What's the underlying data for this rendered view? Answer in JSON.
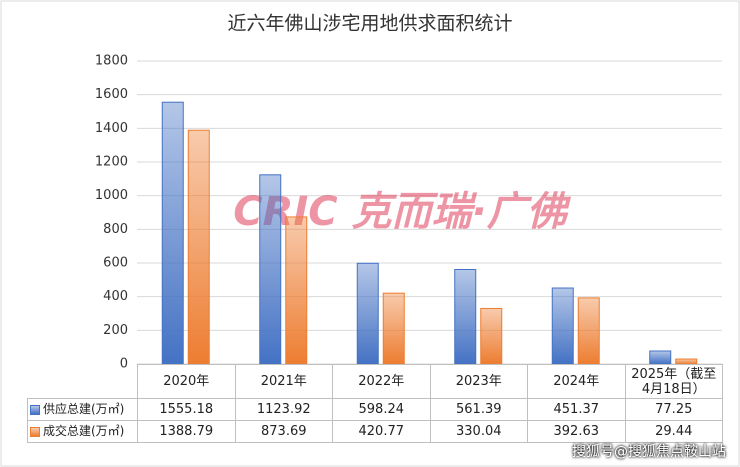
{
  "chart_data": {
    "type": "bar",
    "title": "近六年佛山涉宅用地供求面积统计",
    "categories": [
      "2020年",
      "2021年",
      "2022年",
      "2023年",
      "2024年",
      "2025年（截至4月18日）"
    ],
    "series": [
      {
        "name": "供应总建(万㎡)",
        "color": "#4472c4",
        "values": [
          1555.18,
          1123.92,
          598.24,
          561.39,
          451.37,
          77.25
        ]
      },
      {
        "name": "成交总建(万㎡)",
        "color": "#ed7d31",
        "values": [
          1388.79,
          873.69,
          420.77,
          330.04,
          392.63,
          29.44
        ]
      }
    ],
    "ylim": [
      0,
      1800
    ],
    "yticks": [
      0,
      200,
      400,
      600,
      800,
      1000,
      1200,
      1400,
      1600,
      1800
    ],
    "grid": true,
    "watermark": "CRIC 克而瑞·广佛",
    "footer": "搜狐号@搜狐焦点鞍山站"
  }
}
